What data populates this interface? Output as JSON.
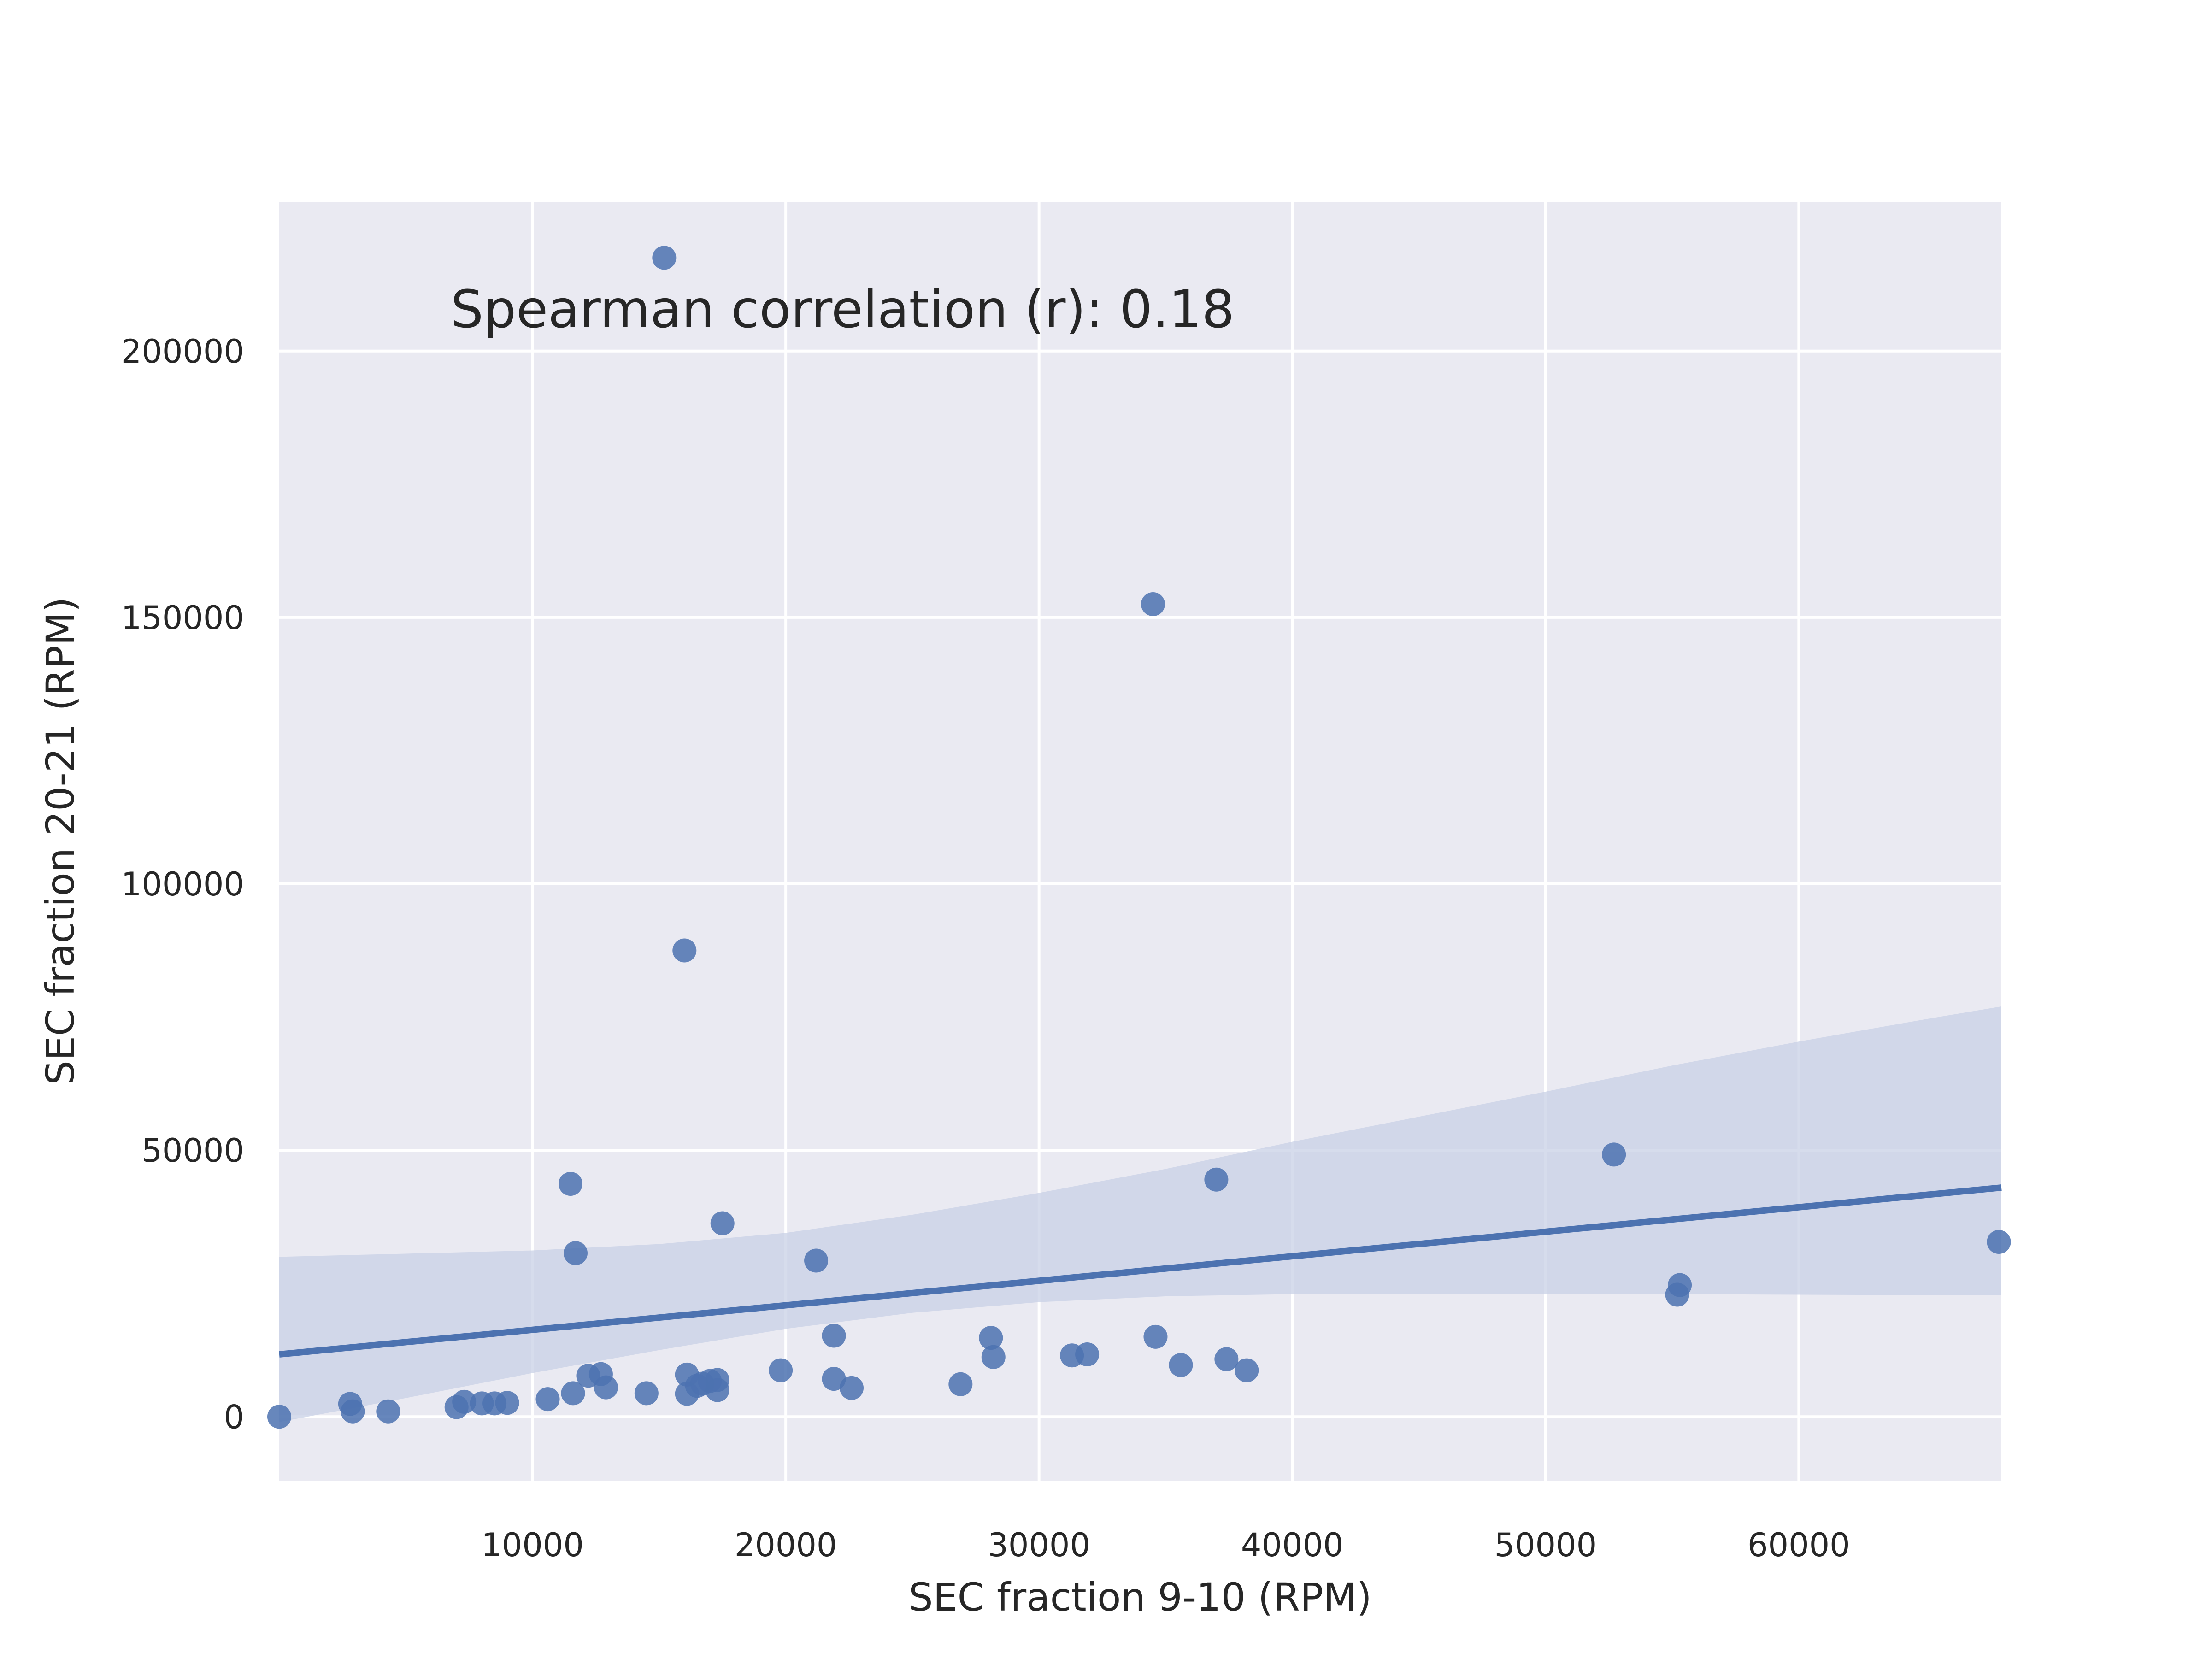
{
  "chart_data": {
    "type": "scatter",
    "title": "",
    "xlabel": "SEC fraction 9-10 (RPM)",
    "ylabel": "SEC fraction 20-21 (RPM)",
    "xlim": [
      0,
      68000
    ],
    "ylim": [
      -12000,
      228000
    ],
    "x_ticks": [
      10000,
      20000,
      30000,
      40000,
      50000,
      60000
    ],
    "x_tick_labels": [
      "10000",
      "20000",
      "30000",
      "40000",
      "50000",
      "60000"
    ],
    "y_ticks": [
      0,
      50000,
      100000,
      150000,
      200000
    ],
    "y_tick_labels": [
      "0",
      "50000",
      "100000",
      "150000",
      "200000"
    ],
    "grid": true,
    "annotation": "Spearman correlation (r): 0.18",
    "colors": {
      "background": "#eaeaf2",
      "grid": "#ffffff",
      "points": "#4c72b0",
      "regression_line": "#4c72b0",
      "confidence_band": "#c8d0e6"
    },
    "points": [
      [
        15200,
        217500
      ],
      [
        34500,
        152500
      ],
      [
        16000,
        87500
      ],
      [
        52700,
        49200
      ],
      [
        11500,
        43700
      ],
      [
        37000,
        44500
      ],
      [
        17500,
        36300
      ],
      [
        11700,
        30700
      ],
      [
        21200,
        29300
      ],
      [
        67900,
        32800
      ],
      [
        55300,
        24700
      ],
      [
        55200,
        22900
      ],
      [
        21900,
        15200
      ],
      [
        28100,
        14800
      ],
      [
        34600,
        15000
      ],
      [
        28200,
        11200
      ],
      [
        31300,
        11500
      ],
      [
        31900,
        11700
      ],
      [
        37400,
        10800
      ],
      [
        35600,
        9700
      ],
      [
        38200,
        8700
      ],
      [
        19800,
        8700
      ],
      [
        12200,
        7700
      ],
      [
        12700,
        8000
      ],
      [
        16100,
        7900
      ],
      [
        17300,
        6900
      ],
      [
        21900,
        7100
      ],
      [
        17000,
        6700
      ],
      [
        16500,
        5800
      ],
      [
        16700,
        6200
      ],
      [
        12900,
        5500
      ],
      [
        17300,
        5000
      ],
      [
        22600,
        5400
      ],
      [
        26900,
        6100
      ],
      [
        14500,
        4400
      ],
      [
        16100,
        4300
      ],
      [
        11600,
        4400
      ],
      [
        10600,
        3300
      ],
      [
        7300,
        2800
      ],
      [
        8000,
        2500
      ],
      [
        8500,
        2500
      ],
      [
        9000,
        2600
      ],
      [
        7000,
        1800
      ],
      [
        2800,
        2400
      ],
      [
        2900,
        1000
      ],
      [
        4300,
        1000
      ],
      [
        0,
        0
      ]
    ],
    "regression": {
      "x": [
        0,
        68000
      ],
      "y": [
        11700,
        43000
      ]
    },
    "confidence_band": {
      "x": [
        0,
        5000,
        10000,
        15000,
        20000,
        25000,
        30000,
        35000,
        40000,
        45000,
        50000,
        55000,
        60000,
        65000,
        68000
      ],
      "lower": [
        -1000,
        3500,
        8200,
        12500,
        16500,
        19500,
        21500,
        22600,
        23000,
        23100,
        23100,
        23000,
        22900,
        22800,
        22800
      ],
      "upper": [
        30000,
        30600,
        31200,
        32400,
        34500,
        37900,
        42000,
        46500,
        51600,
        56300,
        61000,
        65900,
        70400,
        74600,
        77000
      ]
    }
  }
}
